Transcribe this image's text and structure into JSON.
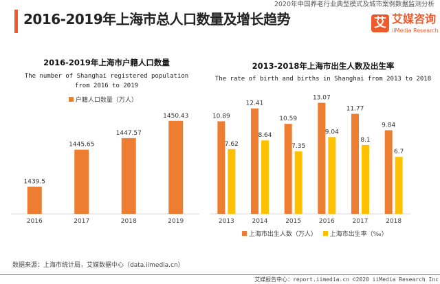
{
  "header": {
    "report_note": "2020年中国养老行业典型模式及城市案例数据监测分析",
    "title": "2016-2019年上海市总人口数量及增长趋势",
    "logo_cn": "艾媒咨询",
    "logo_mark": "艾",
    "logo_en": "iiMedia Research"
  },
  "chart_data": [
    {
      "type": "bar",
      "title": "2016-2019年上海市户籍人口数量",
      "subtitle": "The number of Shanghai registered population from 2016 to 2019",
      "categories": [
        "2016",
        "2017",
        "2018",
        "2019"
      ],
      "series": [
        {
          "name": "户籍人口数量（万人）",
          "values": [
            1439.5,
            1445.65,
            1447.57,
            1450.43
          ],
          "color": "#ed7d31"
        }
      ],
      "ylim": [
        1435,
        1452
      ],
      "grid": false,
      "legend": "top"
    },
    {
      "type": "bar",
      "title": "2013-2018年上海市出生人数及出生率",
      "subtitle": "The rate of birth and births in Shanghai from 2013 to 2018",
      "categories": [
        "2013",
        "2014",
        "2015",
        "2016",
        "2017",
        "2018"
      ],
      "series": [
        {
          "name": "上海市出生人数（万人）",
          "values": [
            10.89,
            12.41,
            10.59,
            13.07,
            11.77,
            9.84
          ],
          "color": "#ed7d31"
        },
        {
          "name": "上海市出生率（‰）",
          "values": [
            7.62,
            8.64,
            7.35,
            9.04,
            8.1,
            6.7
          ],
          "color": "#ffc000"
        }
      ],
      "ylim": [
        0,
        14
      ],
      "grid": false,
      "legend": "bottom"
    }
  ],
  "footer": {
    "source": "数据来源：上海市统计局，艾媒数据中心（data.iimedia.cn）",
    "copyright": "艾媒报告中心：report.iimedia.cn  ©2020  iiMedia Research  Inc"
  }
}
